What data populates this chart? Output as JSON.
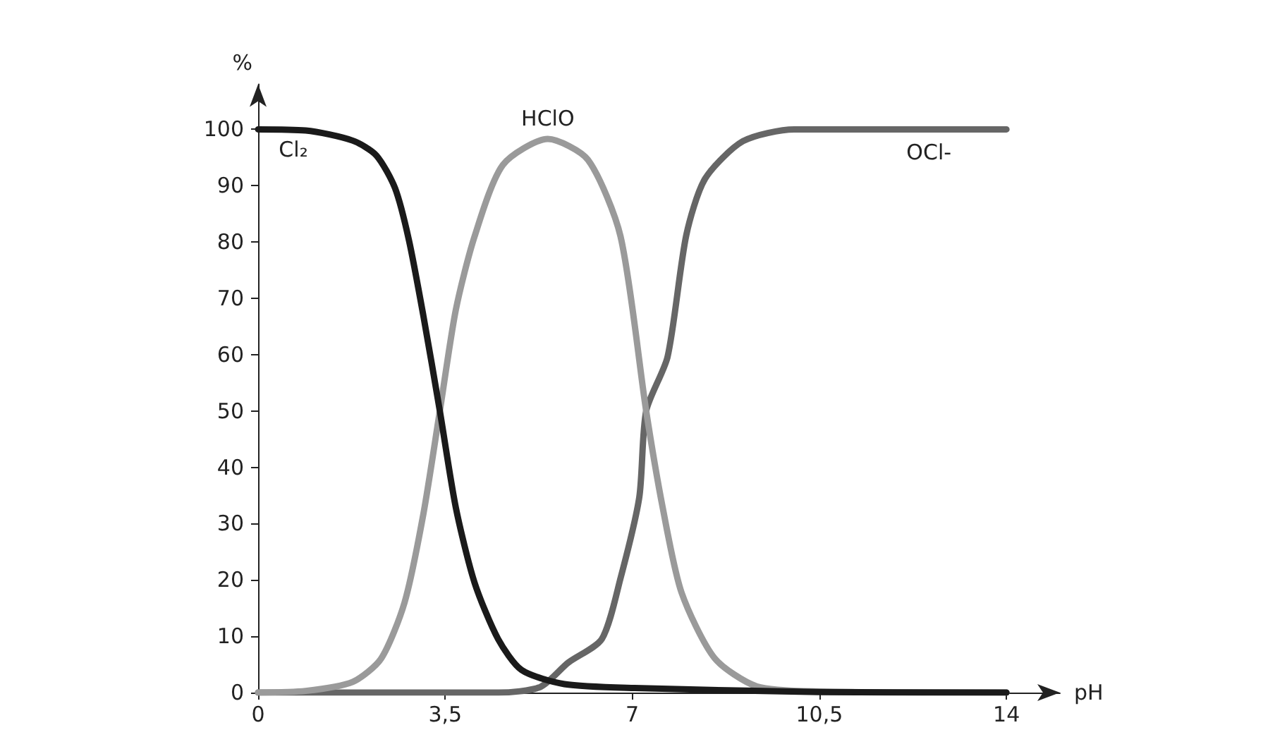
{
  "chart_data": {
    "type": "line",
    "xlabel": "pH",
    "ylabel": "%",
    "xlim": [
      0,
      15
    ],
    "ylim": [
      0,
      108
    ],
    "xticks": [
      0,
      {
        "value": 3.5,
        "label": "3,5"
      },
      7,
      {
        "value": 10.5,
        "label": "10,5"
      },
      14
    ],
    "yticks": [
      0,
      10,
      20,
      30,
      40,
      50,
      60,
      70,
      80,
      90,
      100
    ],
    "grid": false,
    "legend": false,
    "marker": "none",
    "line_style": "solid",
    "series": [
      {
        "name": "Cl₂",
        "color": "#1a1a1a",
        "x": [
          0,
          0.89,
          1.77,
          2.21,
          2.56,
          2.82,
          3.09,
          3.4,
          3.7,
          4.05,
          4.49,
          4.93,
          5.73,
          7.04,
          10.5,
          14
        ],
        "values": [
          100,
          99.8,
          98,
          95.4,
          89.6,
          80.4,
          67,
          50,
          32.8,
          19.5,
          9.5,
          4,
          1.5,
          0.8,
          0.1,
          0
        ]
      },
      {
        "name": "HClO",
        "color": "#9a9a9a",
        "x": [
          0,
          0.89,
          1.77,
          2.3,
          2.74,
          3.09,
          3.4,
          3.7,
          4.05,
          4.58,
          5.42,
          6.17,
          6.78,
          7.26,
          7.57,
          7.92,
          8.54,
          9.33,
          10.5,
          14
        ],
        "values": [
          0,
          0.3,
          1.9,
          6,
          16,
          31.6,
          50,
          68,
          81,
          93.7,
          98.3,
          94.6,
          81,
          50,
          32.8,
          17.8,
          6.1,
          1.1,
          0.2,
          0
        ]
      },
      {
        "name": "OCl-",
        "color": "#666666",
        "x": [
          0,
          4.5,
          5.28,
          5.8,
          6.43,
          6.78,
          7.13,
          7.26,
          7.66,
          8.01,
          8.36,
          9.07,
          10.03,
          14
        ],
        "values": [
          0,
          0,
          1,
          5.3,
          9.5,
          20.3,
          34.6,
          50,
          59.6,
          81.2,
          91.2,
          97.9,
          100,
          100
        ]
      }
    ]
  }
}
